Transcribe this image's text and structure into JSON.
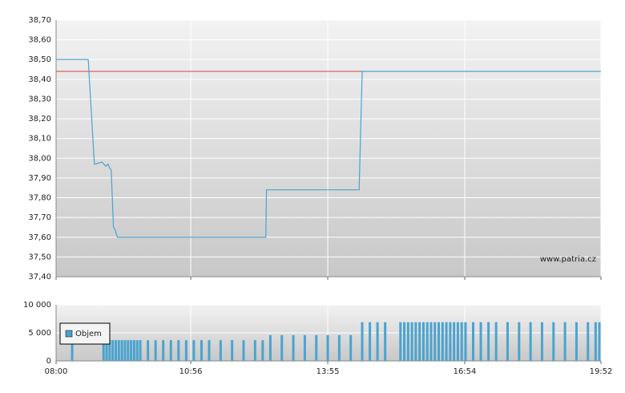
{
  "chart_data": [
    {
      "type": "line",
      "x": [
        "08:00",
        "08:42",
        "08:50",
        "09:00",
        "09:05",
        "09:08",
        "09:10",
        "09:12",
        "09:15",
        "09:17",
        "09:20",
        "12:34",
        "12:35",
        "14:36",
        "14:40",
        "19:52"
      ],
      "series": [
        {
          "color": "#4aa3cf",
          "values": [
            38.5,
            38.5,
            37.97,
            37.98,
            37.96,
            37.97,
            37.95,
            37.94,
            37.65,
            37.64,
            37.6,
            37.6,
            37.84,
            37.84,
            38.44,
            38.44
          ]
        }
      ],
      "reference_line": {
        "value": 38.44,
        "color": "#d04040"
      },
      "xlim": [
        "08:00",
        "19:52"
      ],
      "ylim": [
        37.4,
        38.7
      ],
      "yticks": [
        {
          "value": 37.4,
          "label": "37,40"
        },
        {
          "value": 37.5,
          "label": "37,50"
        },
        {
          "value": 37.6,
          "label": "37,60"
        },
        {
          "value": 37.7,
          "label": "37,70"
        },
        {
          "value": 37.8,
          "label": "37,80"
        },
        {
          "value": 37.9,
          "label": "37,90"
        },
        {
          "value": 38.0,
          "label": "38,00"
        },
        {
          "value": 38.1,
          "label": "38,10"
        },
        {
          "value": 38.2,
          "label": "38,20"
        },
        {
          "value": 38.3,
          "label": "38,30"
        },
        {
          "value": 38.4,
          "label": "38,40"
        },
        {
          "value": 38.5,
          "label": "38,50"
        },
        {
          "value": 38.6,
          "label": "38,60"
        },
        {
          "value": 38.7,
          "label": "38,70"
        }
      ],
      "grid": true,
      "watermark": "www.patria.cz"
    },
    {
      "type": "bar",
      "x": [
        "08:21",
        "09:02",
        "09:06",
        "09:10",
        "09:14",
        "09:18",
        "09:22",
        "09:26",
        "09:30",
        "09:34",
        "09:38",
        "09:42",
        "09:46",
        "09:50",
        "10:00",
        "10:10",
        "10:20",
        "10:30",
        "10:40",
        "10:50",
        "11:00",
        "11:10",
        "11:20",
        "11:35",
        "11:50",
        "12:05",
        "12:20",
        "12:30",
        "12:40",
        "12:55",
        "13:10",
        "13:25",
        "13:40",
        "13:55",
        "14:10",
        "14:25",
        "14:40",
        "14:50",
        "15:00",
        "15:10",
        "15:30",
        "15:35",
        "15:40",
        "15:45",
        "15:50",
        "15:55",
        "16:00",
        "16:05",
        "16:10",
        "16:15",
        "16:20",
        "16:25",
        "16:30",
        "16:35",
        "16:40",
        "16:45",
        "16:50",
        "16:55",
        "17:05",
        "17:15",
        "17:25",
        "17:35",
        "17:50",
        "18:05",
        "18:20",
        "18:35",
        "18:50",
        "19:05",
        "19:20",
        "19:35",
        "19:45",
        "19:50"
      ],
      "series": [
        {
          "name": "Objem",
          "color": "#4aa3cf",
          "values": [
            3600,
            3700,
            3700,
            3700,
            3700,
            3700,
            3700,
            3700,
            3700,
            3700,
            3700,
            3700,
            3700,
            3700,
            3700,
            3700,
            3700,
            3700,
            3700,
            3700,
            3700,
            3700,
            3700,
            3700,
            3700,
            3700,
            3700,
            3700,
            4600,
            4600,
            4600,
            4600,
            4600,
            4600,
            4600,
            4600,
            6900,
            6900,
            6900,
            6900,
            6900,
            6900,
            6900,
            6900,
            6900,
            6900,
            6900,
            6900,
            6900,
            6900,
            6900,
            6900,
            6900,
            6900,
            6900,
            6900,
            6900,
            6900,
            6900,
            6900,
            6900,
            6900,
            6900,
            6900,
            6900,
            6900,
            6900,
            6900,
            6900,
            6900,
            6900,
            6900
          ]
        }
      ],
      "xlim": [
        "08:00",
        "19:52"
      ],
      "xticks": [
        "08:00",
        "10:56",
        "13:55",
        "16:54",
        "19:52"
      ],
      "ylim": [
        0,
        10000
      ],
      "yticks": [
        0,
        {
          "value": 5000,
          "label": "5 000"
        },
        {
          "value": 10000,
          "label": "10 000"
        }
      ],
      "grid": true,
      "legend": "left"
    }
  ]
}
